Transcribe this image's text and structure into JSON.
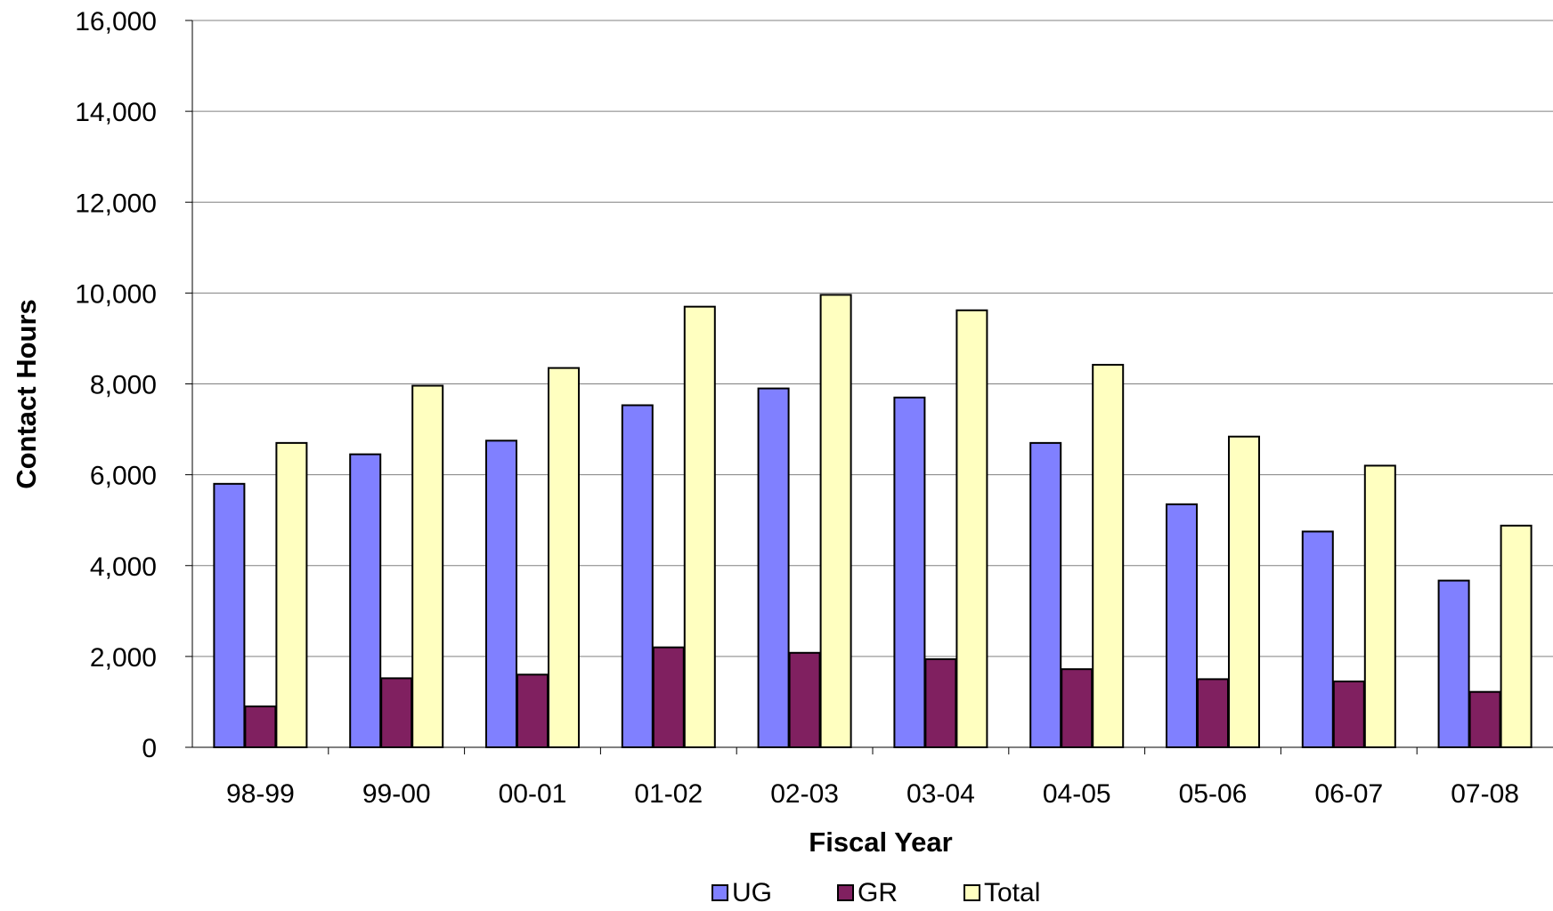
{
  "chart_data": {
    "type": "bar",
    "title": "",
    "xlabel": "Fiscal Year",
    "ylabel": "Contact Hours",
    "categories": [
      "98-99",
      "99-00",
      "00-01",
      "01-02",
      "02-03",
      "03-04",
      "04-05",
      "05-06",
      "06-07",
      "07-08"
    ],
    "series": [
      {
        "name": "UG",
        "color": "#8080ff",
        "values": [
          5800,
          6450,
          6750,
          7530,
          7900,
          7700,
          6700,
          5350,
          4750,
          3670
        ]
      },
      {
        "name": "GR",
        "color": "#802060",
        "values": [
          900,
          1520,
          1600,
          2200,
          2080,
          1940,
          1720,
          1500,
          1450,
          1220
        ]
      },
      {
        "name": "Total",
        "color": "#ffffc0",
        "values": [
          6700,
          7960,
          8350,
          9700,
          9960,
          9620,
          8420,
          6840,
          6200,
          4880
        ]
      }
    ],
    "ylim": [
      0,
      16000
    ],
    "yticks": [
      0,
      2000,
      4000,
      6000,
      8000,
      10000,
      12000,
      14000,
      16000
    ],
    "ytick_labels": [
      "0",
      "2,000",
      "4,000",
      "6,000",
      "8,000",
      "10,000",
      "12,000",
      "14,000",
      "16,000"
    ],
    "grid": true,
    "legend_position": "bottom"
  }
}
